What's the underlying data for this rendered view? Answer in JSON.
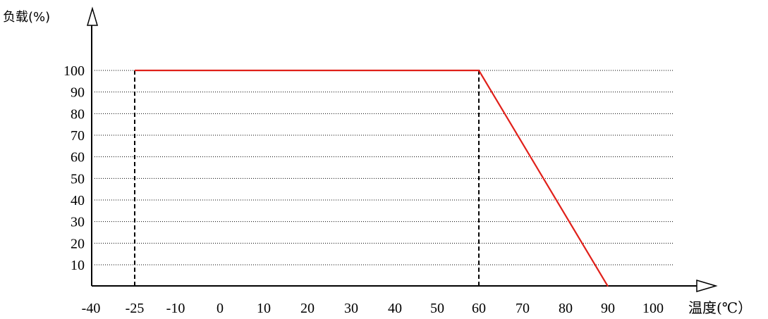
{
  "chart_data": {
    "type": "line",
    "ylabel": "负载(%)",
    "xlabel": "温度(℃）",
    "x_ticks": [
      "-40",
      "-25",
      "-10",
      "0",
      "10",
      "20",
      "30",
      "40",
      "50",
      "60",
      "70",
      "80",
      "90",
      "100"
    ],
    "y_ticks": [
      "100",
      "90",
      "80",
      "70",
      "60",
      "50",
      "40",
      "30",
      "20",
      "10"
    ],
    "x_tick_values": [
      -40,
      -25,
      -10,
      0,
      10,
      20,
      30,
      40,
      50,
      60,
      70,
      80,
      90,
      100
    ],
    "y_tick_values": [
      100,
      90,
      80,
      70,
      60,
      50,
      40,
      30,
      20,
      10
    ],
    "xlim": [
      -40,
      100
    ],
    "ylim": [
      0,
      100
    ],
    "grid": "dotted horizontal",
    "series": [
      {
        "x": [
          -25,
          60,
          90
        ],
        "y": [
          100,
          100,
          0
        ],
        "color": "#e0201a"
      }
    ],
    "reference_lines_x": [
      -25,
      60
    ]
  }
}
